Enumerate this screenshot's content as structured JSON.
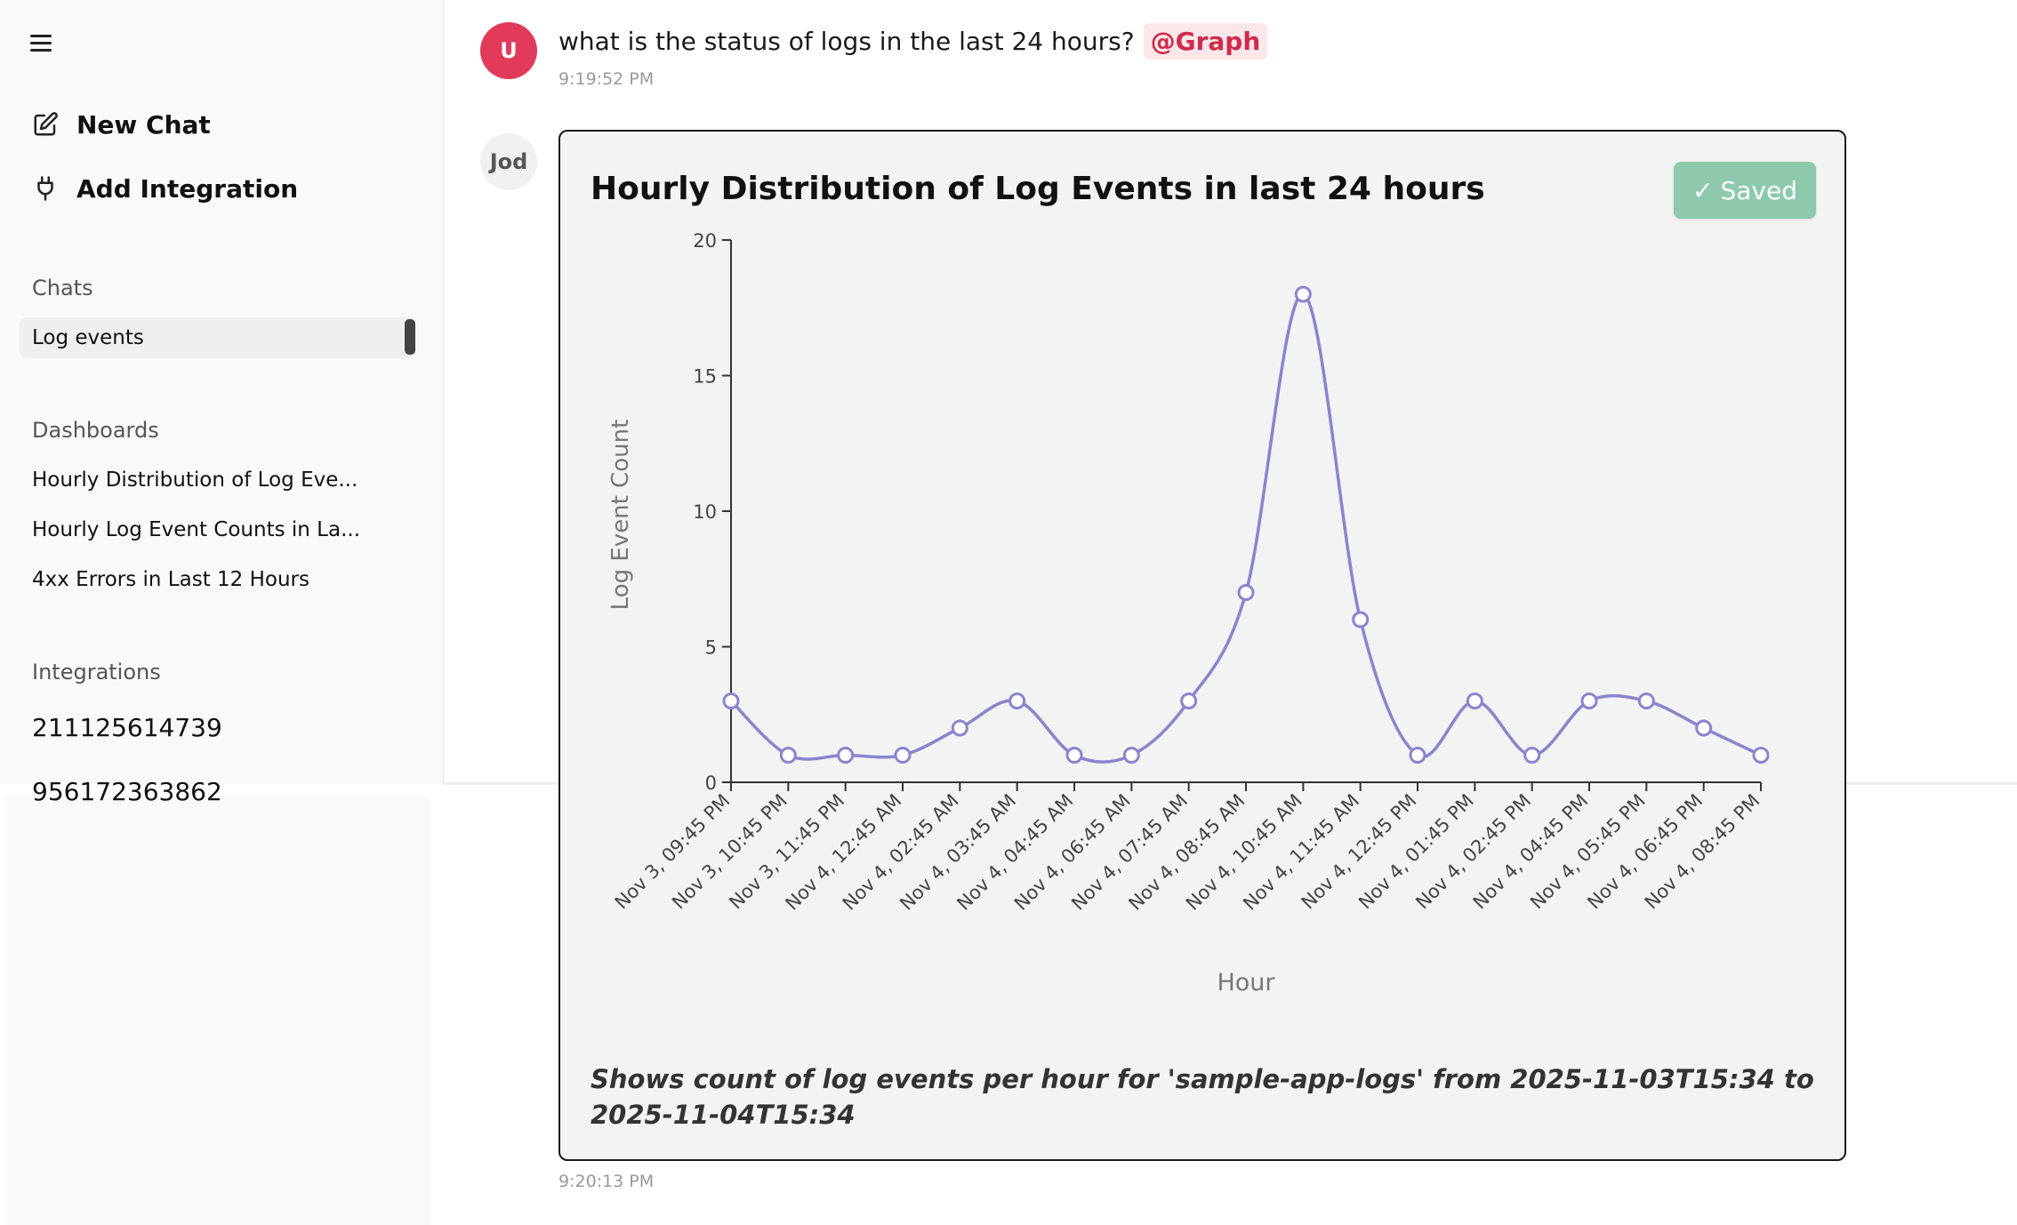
{
  "sidebar": {
    "new_chat": "New Chat",
    "add_integration": "Add Integration",
    "chats_title": "Chats",
    "chats": [
      "Log events"
    ],
    "dashboards_title": "Dashboards",
    "dashboards": [
      "Hourly Distribution of Log Eve...",
      "Hourly Log Event Counts in La...",
      "4xx Errors in Last 12 Hours"
    ],
    "integrations_title": "Integrations",
    "integrations": [
      "211125614739",
      "956172363862"
    ]
  },
  "user_message": {
    "avatar": "U",
    "text": "what is the status of logs in the last 24 hours?",
    "mention": "@Graph",
    "time": "9:19:52 PM"
  },
  "reply": {
    "avatar": "Jod",
    "saved_label": "Saved",
    "caption": "Shows count of log events per hour for 'sample-app-logs' from 2025-11-03T15:34 to 2025-11-04T15:34",
    "time": "9:20:13 PM"
  },
  "chart_data": {
    "type": "line",
    "title": "Hourly Distribution of Log Events in last 24 hours",
    "xlabel": "Hour",
    "ylabel": "Log Event Count",
    "ylim": [
      0,
      20
    ],
    "yticks": [
      0,
      5,
      10,
      15,
      20
    ],
    "categories": [
      "Nov 3, 09:45 PM",
      "Nov 3, 10:45 PM",
      "Nov 3, 11:45 PM",
      "Nov 4, 12:45 AM",
      "Nov 4, 02:45 AM",
      "Nov 4, 03:45 AM",
      "Nov 4, 04:45 AM",
      "Nov 4, 06:45 AM",
      "Nov 4, 07:45 AM",
      "Nov 4, 08:45 AM",
      "Nov 4, 10:45 AM",
      "Nov 4, 11:45 AM",
      "Nov 4, 12:45 PM",
      "Nov 4, 01:45 PM",
      "Nov 4, 02:45 PM",
      "Nov 4, 04:45 PM",
      "Nov 4, 05:45 PM",
      "Nov 4, 06:45 PM",
      "Nov 4, 08:45 PM"
    ],
    "values": [
      3,
      1,
      1,
      1,
      2,
      3,
      1,
      1,
      3,
      7,
      18,
      6,
      1,
      3,
      1,
      3,
      3,
      2,
      1
    ],
    "line_color": "#8a84cf",
    "grid": false
  },
  "colors": {
    "user_avatar": "#e23a5a",
    "mention_text": "#cf2a4c",
    "saved_button": "#8dc9ad"
  },
  "icons": {
    "menu": "hamburger-icon",
    "new_chat": "edit-icon",
    "add_integration": "plug-icon",
    "saved": "check-icon"
  }
}
